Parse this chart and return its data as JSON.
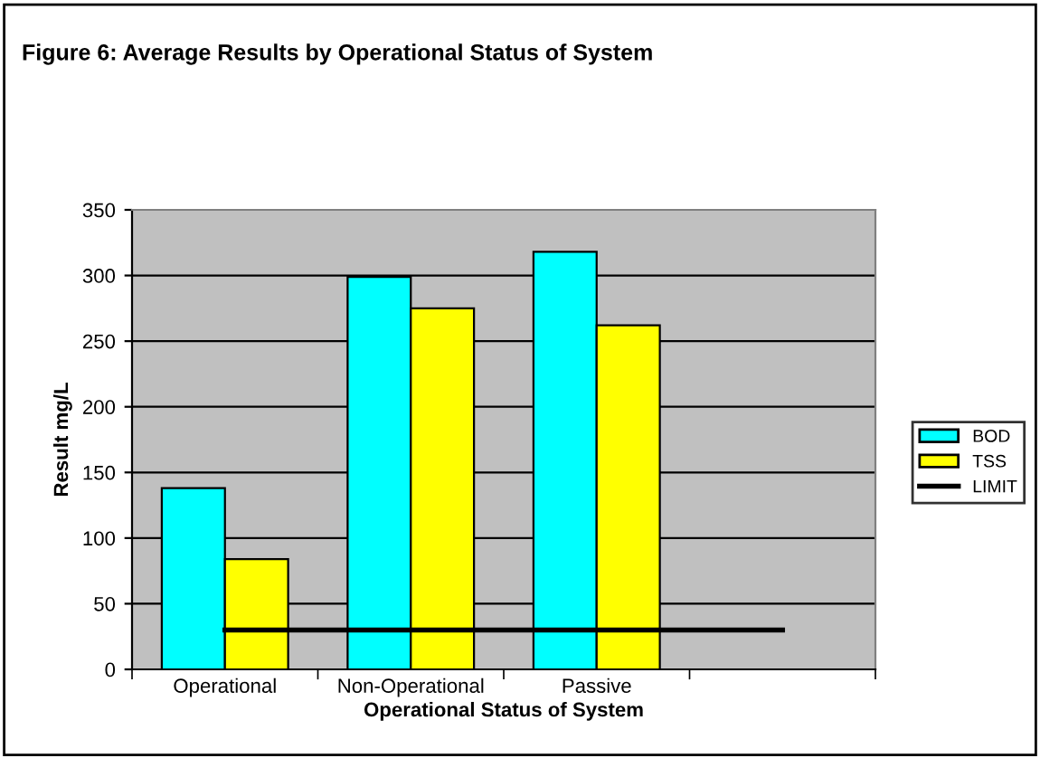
{
  "chart_data": {
    "type": "bar",
    "title": "Figure 6: Average Results by Operational Status of System",
    "xlabel": "Operational Status of System",
    "ylabel": "Result mg/L",
    "categories": [
      "Operational",
      "Non-Operational",
      "Passive",
      null
    ],
    "series": [
      {
        "name": "BOD",
        "color": "#00ffff",
        "values": [
          138,
          299,
          318,
          null
        ]
      },
      {
        "name": "TSS",
        "color": "#ffff00",
        "values": [
          84,
          275,
          262,
          null
        ]
      },
      {
        "name": "LIMIT",
        "color": "#000000",
        "type": "line",
        "values": [
          30,
          30,
          30,
          30
        ]
      }
    ],
    "ylim": [
      0,
      350
    ],
    "yticks": [
      0,
      50,
      100,
      150,
      200,
      250,
      300,
      350
    ],
    "grid": "y",
    "legend": "right",
    "marker": "none",
    "line_style": "solid"
  }
}
